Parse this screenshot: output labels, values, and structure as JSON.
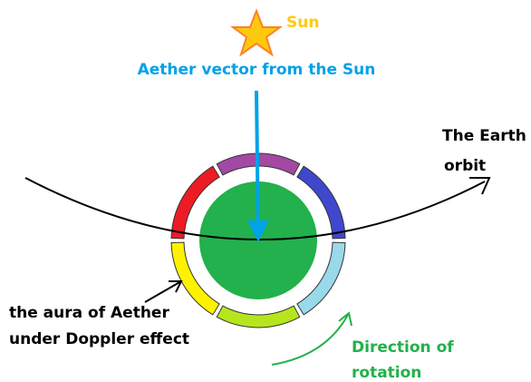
{
  "sun": {
    "label": "Sun"
  },
  "aether_vector": {
    "label": "Aether vector from the Sun"
  },
  "earth_orbit": {
    "label": [
      "The Earth",
      "orbit"
    ]
  },
  "aura": {
    "label": [
      "the aura of Aether",
      "under Doppler effect"
    ]
  },
  "rotation": {
    "label": [
      "Direction of",
      "rotation"
    ]
  }
}
